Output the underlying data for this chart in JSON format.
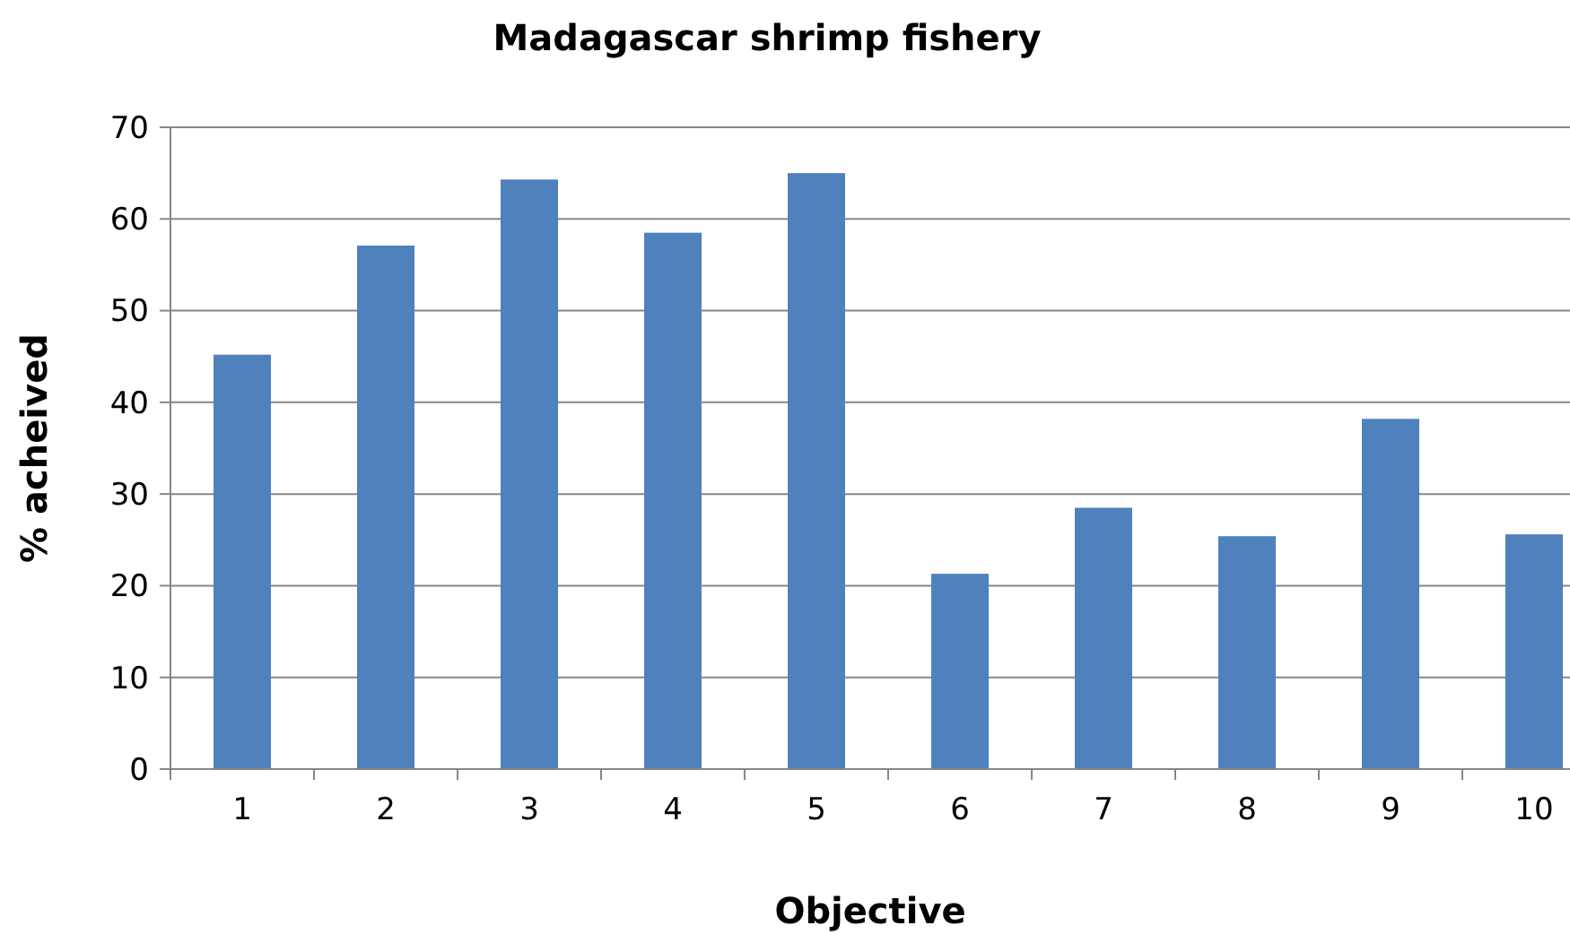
{
  "chart_data": {
    "type": "bar",
    "title": "Madagascar shrimp fishery",
    "xlabel": "Objective",
    "ylabel": "% acheived",
    "categories": [
      "1",
      "2",
      "3",
      "4",
      "5",
      "6",
      "7",
      "8",
      "9",
      "10"
    ],
    "values": [
      45.2,
      57.1,
      64.3,
      58.5,
      65,
      21.3,
      28.5,
      25.4,
      38.2,
      25.6
    ],
    "color": "#4f81bd",
    "ylim": [
      0,
      70
    ],
    "yticks": [
      0,
      10,
      20,
      30,
      40,
      50,
      60,
      70
    ],
    "grid": "y"
  }
}
